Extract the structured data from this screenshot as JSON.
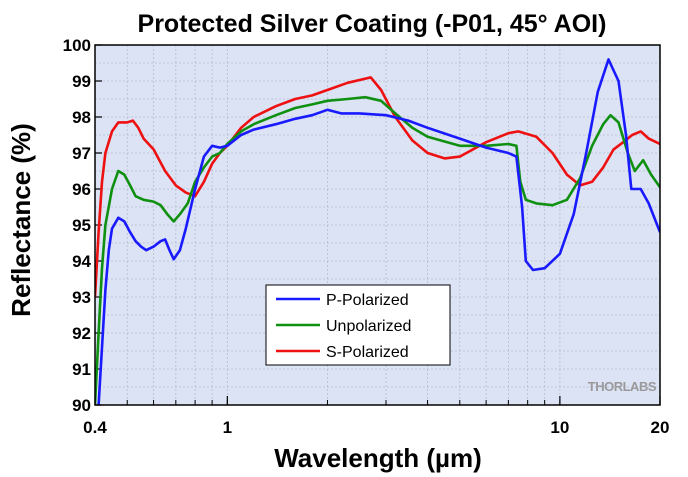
{
  "chart_data": {
    "type": "line",
    "title": "Protected Silver Coating (-P01, 45° AOI)",
    "xlabel": "Wavelength (µm)",
    "ylabel": "Reflectance (%)",
    "x_scale": "log",
    "xlim": [
      0.4,
      20
    ],
    "ylim": [
      90,
      100
    ],
    "x_ticks": [
      0.4,
      1,
      10,
      20
    ],
    "x_tick_labels": [
      "0.4",
      "1",
      "10",
      "20"
    ],
    "y_ticks": [
      90,
      91,
      92,
      93,
      94,
      95,
      96,
      97,
      98,
      99,
      100
    ],
    "y_tick_labels": [
      "90",
      "91",
      "92",
      "93",
      "94",
      "95",
      "96",
      "97",
      "98",
      "99",
      "100"
    ],
    "grid": true,
    "legend_position": "bottom-center",
    "watermark": "THORLABS",
    "series": [
      {
        "name": "P-Polarized",
        "color": "#1a1aff",
        "points": [
          [
            0.41,
            90.0
          ],
          [
            0.42,
            91.6
          ],
          [
            0.43,
            93.2
          ],
          [
            0.44,
            94.3
          ],
          [
            0.45,
            94.9
          ],
          [
            0.47,
            95.2
          ],
          [
            0.49,
            95.1
          ],
          [
            0.51,
            94.8
          ],
          [
            0.53,
            94.55
          ],
          [
            0.55,
            94.4
          ],
          [
            0.57,
            94.3
          ],
          [
            0.6,
            94.4
          ],
          [
            0.63,
            94.55
          ],
          [
            0.65,
            94.6
          ],
          [
            0.67,
            94.3
          ],
          [
            0.69,
            94.05
          ],
          [
            0.72,
            94.3
          ],
          [
            0.75,
            94.9
          ],
          [
            0.8,
            96.0
          ],
          [
            0.85,
            96.9
          ],
          [
            0.9,
            97.2
          ],
          [
            0.95,
            97.15
          ],
          [
            1.0,
            97.2
          ],
          [
            1.1,
            97.5
          ],
          [
            1.2,
            97.65
          ],
          [
            1.4,
            97.8
          ],
          [
            1.6,
            97.95
          ],
          [
            1.8,
            98.05
          ],
          [
            2.0,
            98.2
          ],
          [
            2.2,
            98.1
          ],
          [
            2.5,
            98.1
          ],
          [
            3.0,
            98.05
          ],
          [
            3.5,
            97.9
          ],
          [
            4.0,
            97.7
          ],
          [
            5.0,
            97.4
          ],
          [
            6.0,
            97.15
          ],
          [
            7.0,
            97.0
          ],
          [
            7.4,
            96.9
          ],
          [
            7.7,
            95.5
          ],
          [
            7.9,
            94.0
          ],
          [
            8.3,
            93.75
          ],
          [
            9.0,
            93.8
          ],
          [
            10.0,
            94.2
          ],
          [
            11.0,
            95.3
          ],
          [
            12.0,
            97.0
          ],
          [
            13.0,
            98.7
          ],
          [
            14.0,
            99.6
          ],
          [
            15.0,
            99.0
          ],
          [
            15.8,
            97.5
          ],
          [
            16.4,
            96.0
          ],
          [
            17.5,
            96.0
          ],
          [
            18.5,
            95.6
          ],
          [
            20.0,
            94.8
          ]
        ]
      },
      {
        "name": "Unpolarized",
        "color": "#109010",
        "points": [
          [
            0.4,
            90.0
          ],
          [
            0.41,
            92.0
          ],
          [
            0.42,
            93.8
          ],
          [
            0.43,
            95.0
          ],
          [
            0.45,
            96.0
          ],
          [
            0.47,
            96.5
          ],
          [
            0.49,
            96.4
          ],
          [
            0.51,
            96.1
          ],
          [
            0.53,
            95.8
          ],
          [
            0.56,
            95.7
          ],
          [
            0.6,
            95.65
          ],
          [
            0.63,
            95.55
          ],
          [
            0.66,
            95.3
          ],
          [
            0.69,
            95.1
          ],
          [
            0.72,
            95.3
          ],
          [
            0.76,
            95.6
          ],
          [
            0.8,
            96.2
          ],
          [
            0.85,
            96.6
          ],
          [
            0.9,
            96.9
          ],
          [
            0.95,
            97.0
          ],
          [
            1.0,
            97.25
          ],
          [
            1.1,
            97.6
          ],
          [
            1.2,
            97.8
          ],
          [
            1.4,
            98.05
          ],
          [
            1.6,
            98.25
          ],
          [
            1.8,
            98.35
          ],
          [
            2.0,
            98.45
          ],
          [
            2.3,
            98.5
          ],
          [
            2.6,
            98.55
          ],
          [
            2.9,
            98.45
          ],
          [
            3.2,
            98.1
          ],
          [
            3.6,
            97.7
          ],
          [
            4.0,
            97.45
          ],
          [
            5.0,
            97.2
          ],
          [
            6.0,
            97.2
          ],
          [
            7.0,
            97.25
          ],
          [
            7.4,
            97.2
          ],
          [
            7.6,
            96.2
          ],
          [
            7.9,
            95.7
          ],
          [
            8.5,
            95.6
          ],
          [
            9.5,
            95.55
          ],
          [
            10.5,
            95.7
          ],
          [
            11.5,
            96.3
          ],
          [
            12.5,
            97.2
          ],
          [
            13.5,
            97.8
          ],
          [
            14.2,
            98.05
          ],
          [
            15.0,
            97.85
          ],
          [
            16.0,
            97.0
          ],
          [
            16.8,
            96.5
          ],
          [
            17.8,
            96.8
          ],
          [
            18.8,
            96.4
          ],
          [
            20.0,
            96.05
          ]
        ]
      },
      {
        "name": "S-Polarized",
        "color": "#ee1111",
        "points": [
          [
            0.4,
            93.0
          ],
          [
            0.41,
            94.8
          ],
          [
            0.42,
            96.2
          ],
          [
            0.43,
            97.0
          ],
          [
            0.45,
            97.6
          ],
          [
            0.47,
            97.85
          ],
          [
            0.5,
            97.85
          ],
          [
            0.52,
            97.9
          ],
          [
            0.54,
            97.7
          ],
          [
            0.56,
            97.4
          ],
          [
            0.6,
            97.1
          ],
          [
            0.65,
            96.5
          ],
          [
            0.7,
            96.1
          ],
          [
            0.75,
            95.9
          ],
          [
            0.8,
            95.8
          ],
          [
            0.85,
            96.2
          ],
          [
            0.9,
            96.7
          ],
          [
            0.95,
            97.0
          ],
          [
            1.0,
            97.2
          ],
          [
            1.1,
            97.7
          ],
          [
            1.2,
            98.0
          ],
          [
            1.4,
            98.3
          ],
          [
            1.6,
            98.5
          ],
          [
            1.8,
            98.6
          ],
          [
            2.0,
            98.75
          ],
          [
            2.3,
            98.95
          ],
          [
            2.7,
            99.1
          ],
          [
            2.9,
            98.75
          ],
          [
            3.2,
            98.0
          ],
          [
            3.6,
            97.35
          ],
          [
            4.0,
            97.0
          ],
          [
            4.5,
            96.85
          ],
          [
            5.0,
            96.9
          ],
          [
            6.0,
            97.3
          ],
          [
            7.0,
            97.55
          ],
          [
            7.5,
            97.6
          ],
          [
            8.5,
            97.45
          ],
          [
            9.5,
            97.0
          ],
          [
            10.5,
            96.4
          ],
          [
            11.5,
            96.1
          ],
          [
            12.5,
            96.2
          ],
          [
            13.5,
            96.6
          ],
          [
            14.5,
            97.1
          ],
          [
            15.5,
            97.3
          ],
          [
            16.5,
            97.5
          ],
          [
            17.5,
            97.6
          ],
          [
            18.5,
            97.4
          ],
          [
            20.0,
            97.25
          ]
        ]
      }
    ]
  }
}
